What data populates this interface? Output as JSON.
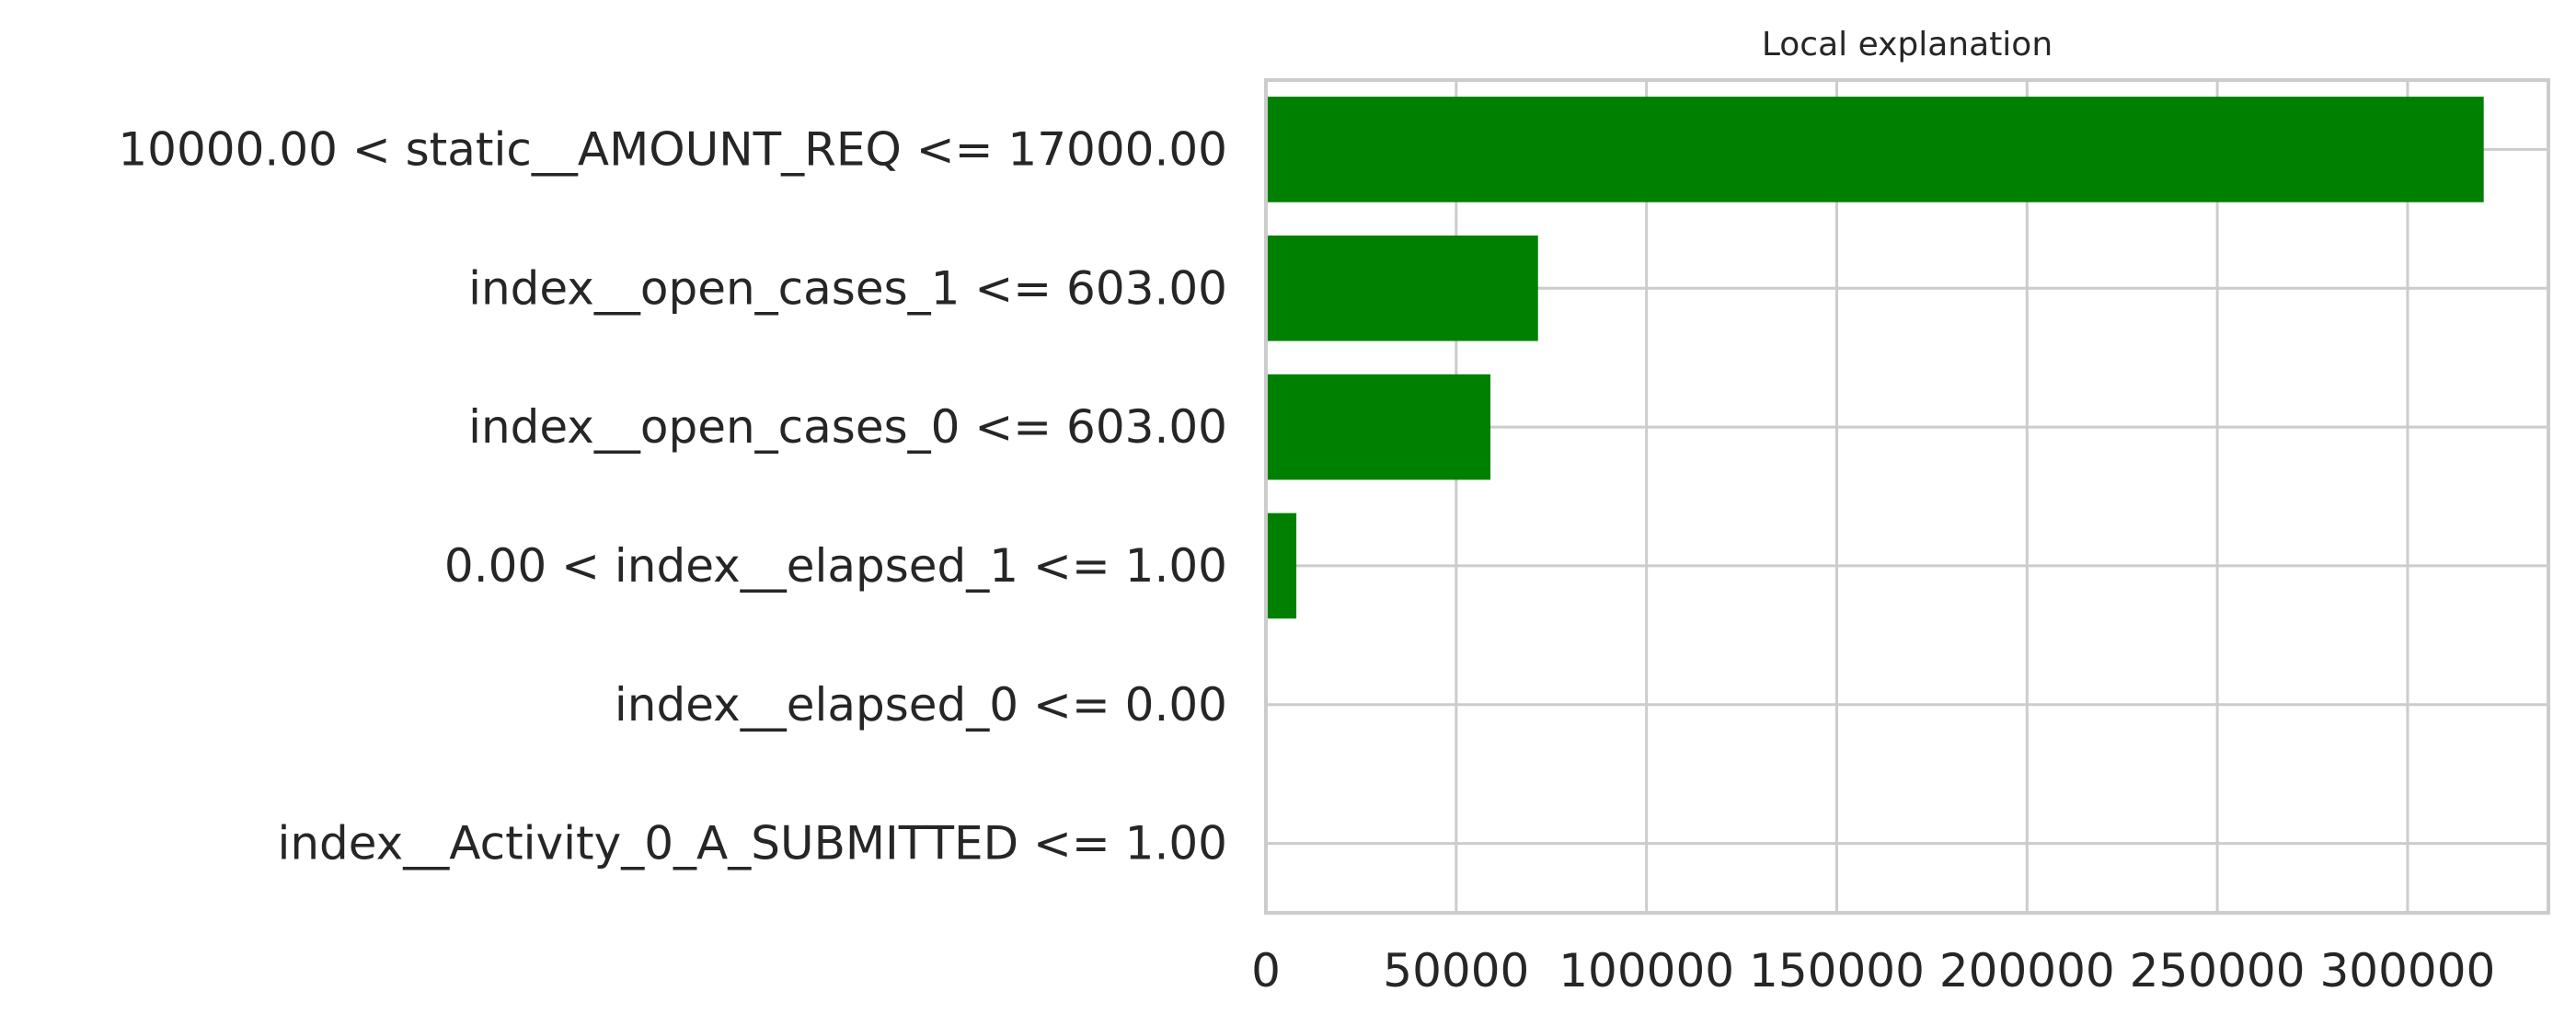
{
  "chart_data": {
    "type": "bar",
    "orientation": "horizontal",
    "title": "Local explanation",
    "xlabel": "",
    "ylabel": "",
    "categories": [
      "10000.00 < static__AMOUNT_REQ <= 17000.00",
      "index__open_cases_1 <= 603.00",
      "index__open_cases_0 <= 603.00",
      "0.00 < index__elapsed_1 <= 1.00",
      "index__elapsed_0 <= 0.00",
      "index__Activity_0_A_SUBMITTED <= 1.00"
    ],
    "values": [
      320000,
      71500,
      59000,
      8000,
      0,
      0
    ],
    "xlim": [
      0,
      337000
    ],
    "xticks": [
      0,
      50000,
      100000,
      150000,
      200000,
      250000,
      300000
    ],
    "xtick_labels": [
      "0",
      "50000",
      "100000",
      "150000",
      "200000",
      "250000",
      "300000"
    ],
    "grid": true,
    "legend": "none",
    "bar_color": "#008000",
    "grid_color": "#cccccc",
    "text_color": "#262626"
  }
}
